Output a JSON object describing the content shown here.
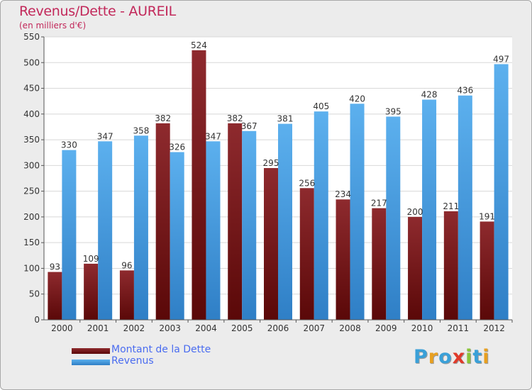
{
  "header": {
    "title": "Revenus/Dette - AUREIL",
    "subtitle": "(en milliers d'€)"
  },
  "legend": [
    {
      "label": "Montant de la Dette",
      "color": "#7a1a1e"
    },
    {
      "label": "Revenus",
      "color": "#4b9fe4"
    }
  ],
  "logo": {
    "text": "Proxiti",
    "letters": [
      {
        "ch": "P",
        "color": "#3aa0d8"
      },
      {
        "ch": "r",
        "color": "#e8a020"
      },
      {
        "ch": "o",
        "color": "#3aa0d8"
      },
      {
        "ch": "x",
        "color": "#e03a2a"
      },
      {
        "ch": "i",
        "color": "#8ac43a"
      },
      {
        "ch": "t",
        "color": "#3aa0d8"
      },
      {
        "ch": "i",
        "color": "#e8a020"
      }
    ]
  },
  "chart_data": {
    "type": "bar",
    "title": "Revenus/Dette - AUREIL",
    "subtitle": "(en milliers d'€)",
    "categories": [
      "2000",
      "2001",
      "2002",
      "2003",
      "2004",
      "2005",
      "2006",
      "2007",
      "2008",
      "2009",
      "2010",
      "2011",
      "2012"
    ],
    "series": [
      {
        "name": "Montant de la Dette",
        "color": "#7a1a1e",
        "values": [
          93,
          109,
          96,
          382,
          524,
          382,
          295,
          256,
          234,
          217,
          200,
          211,
          191
        ]
      },
      {
        "name": "Revenus",
        "color": "#4b9fe4",
        "values": [
          330,
          347,
          358,
          326,
          347,
          367,
          381,
          405,
          420,
          395,
          428,
          436,
          497
        ]
      }
    ],
    "ylim": [
      0,
      550
    ],
    "yticks": [
      0,
      50,
      100,
      150,
      200,
      250,
      300,
      350,
      400,
      450,
      500,
      550
    ],
    "grid": true,
    "legend_position": "bottom-left"
  }
}
